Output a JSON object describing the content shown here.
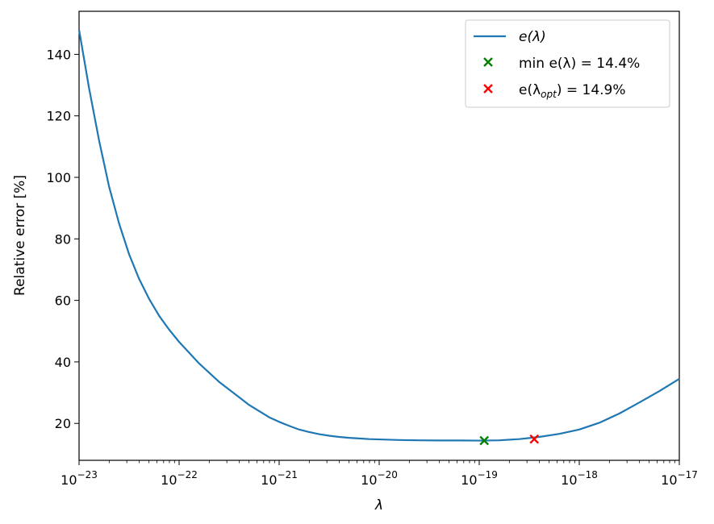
{
  "chart_data": {
    "type": "line",
    "xlabel": "λ",
    "ylabel": "Relative error [%]",
    "xscale": "log",
    "xlim_exp": [
      -23,
      -17
    ],
    "ylim": [
      8,
      154
    ],
    "grid": false,
    "legend_placement": "top-right",
    "x_ticks": [
      {
        "base": "10",
        "exp": "−23"
      },
      {
        "base": "10",
        "exp": "−22"
      },
      {
        "base": "10",
        "exp": "−21"
      },
      {
        "base": "10",
        "exp": "−20"
      },
      {
        "base": "10",
        "exp": "−19"
      },
      {
        "base": "10",
        "exp": "−18"
      },
      {
        "base": "10",
        "exp": "−17"
      }
    ],
    "y_ticks": [
      "20",
      "40",
      "60",
      "80",
      "100",
      "120",
      "140"
    ],
    "series": [
      {
        "name": "e(λ)",
        "color": "#1f77b4",
        "style": "line",
        "log10_x": [
          -23.0,
          -22.9,
          -22.8,
          -22.7,
          -22.6,
          -22.5,
          -22.4,
          -22.3,
          -22.2,
          -22.1,
          -22.0,
          -21.9,
          -21.8,
          -21.7,
          -21.6,
          -21.5,
          -21.4,
          -21.3,
          -21.2,
          -21.1,
          -21.0,
          -20.9,
          -20.8,
          -20.7,
          -20.6,
          -20.5,
          -20.4,
          -20.3,
          -20.2,
          -20.1,
          -20.0,
          -19.8,
          -19.6,
          -19.4,
          -19.2,
          -19.0,
          -18.8,
          -18.6,
          -18.4,
          -18.2,
          -18.0,
          -17.8,
          -17.6,
          -17.4,
          -17.2,
          -17.0
        ],
        "y": [
          148,
          129,
          112,
          97,
          85,
          75,
          67,
          60.5,
          55,
          50.5,
          46.5,
          43,
          39.5,
          36.5,
          33.5,
          31,
          28.5,
          26,
          24,
          22,
          20.5,
          19.2,
          18,
          17.2,
          16.5,
          16,
          15.6,
          15.3,
          15.1,
          14.9,
          14.8,
          14.6,
          14.5,
          14.45,
          14.45,
          14.4,
          14.5,
          14.9,
          15.6,
          16.6,
          18.0,
          20.2,
          23.2,
          26.8,
          30.5,
          34.5
        ]
      }
    ],
    "markers": [
      {
        "label_main": "min e(λ) = 14.4%",
        "color": "#008000",
        "log10_x": -18.95,
        "y": 14.4
      },
      {
        "label_main": "e(λ",
        "label_sub": "opt",
        "label_tail": ") = 14.9%",
        "color": "#ff0000",
        "log10_x": -18.45,
        "y": 14.9
      }
    ]
  }
}
